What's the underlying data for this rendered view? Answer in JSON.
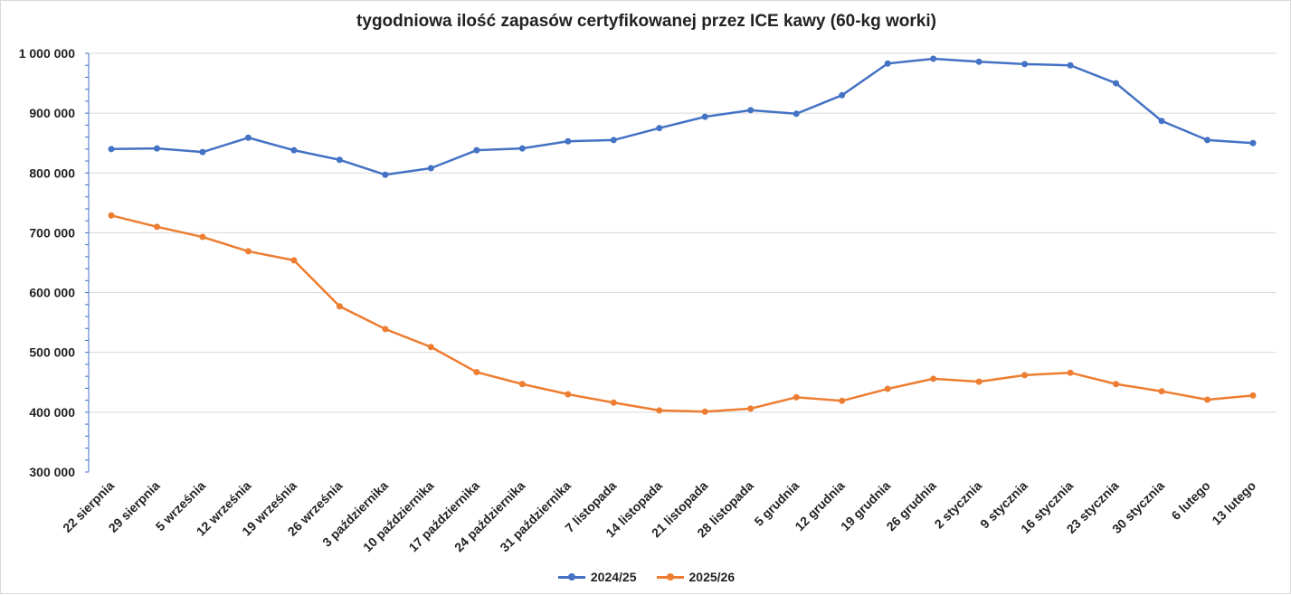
{
  "chart_data": {
    "type": "line",
    "title": "tygodniowa ilość zapasów certyfikowanej przez ICE kawy (60-kg worki)",
    "xlabel": "",
    "ylabel": "",
    "ylim": [
      300000,
      1000000
    ],
    "yticks": [
      300000,
      400000,
      500000,
      600000,
      700000,
      800000,
      900000,
      1000000
    ],
    "ytick_labels": [
      "300 000",
      "400 000",
      "500 000",
      "600 000",
      "700 000",
      "800 000",
      "900 000",
      "1 000 000"
    ],
    "grid": true,
    "legend": "bottom",
    "categories": [
      "22 sierpnia",
      "29 sierpnia",
      "5 września",
      "12 września",
      "19 września",
      "26 września",
      "3 października",
      "10 października",
      "17 października",
      "24 października",
      "31 października",
      "7 listopada",
      "14 listopada",
      "21 listopada",
      "28 listopada",
      "5 grudnia",
      "12 grudnia",
      "19 grudnia",
      "26 grudnia",
      "2 stycznia",
      "9 stycznia",
      "16 stycznia",
      "23 stycznia",
      "30 stycznia",
      "6 lutego",
      "13 lutego"
    ],
    "series": [
      {
        "name": "2024/25",
        "color": "#4472C4",
        "values": [
          840000,
          841000,
          835000,
          859000,
          838000,
          822000,
          797000,
          808000,
          838000,
          841000,
          853000,
          855000,
          875000,
          894000,
          905000,
          899000,
          930000,
          983000,
          991000,
          986000,
          982000,
          980000,
          950000,
          887000,
          855000,
          850000
        ]
      },
      {
        "name": "2025/26",
        "color": "#ED7D31",
        "values": [
          729000,
          710000,
          693000,
          669000,
          654000,
          577000,
          539000,
          509000,
          467000,
          447000,
          430000,
          416000,
          403000,
          401000,
          406000,
          425000,
          419000,
          439000,
          456000,
          451000,
          462000,
          466000,
          447000,
          435000,
          421000,
          428000
        ]
      }
    ]
  }
}
